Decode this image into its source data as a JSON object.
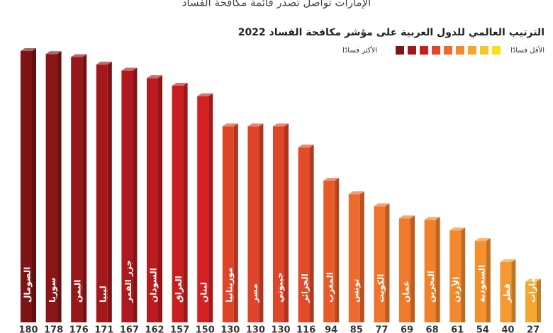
{
  "chart_data": {
    "type": "bar",
    "title": "الإمارات تواصل تصدر قائمة مكافحة الفساد",
    "subtitle": "الترتيب العالمي للدول العربية على مؤشر مكافحة الفساد 2022",
    "legend_low": "الأقل فسادًا",
    "legend_high": "الأكثر فسادًا",
    "legend_colors": [
      "#f6e21a",
      "#f7c81f",
      "#f5a52a",
      "#f18a2b",
      "#ec6a2b",
      "#e0452a",
      "#c81e20",
      "#a4181b",
      "#7d1416"
    ],
    "categories": [
      "الصومال",
      "سوريا",
      "اليمن",
      "ليبيا",
      "جزر القمر",
      "السودان",
      "العراق",
      "لبنان",
      "موريتانيا",
      "مصر",
      "جيبوتي",
      "الجزائر",
      "المغرب",
      "تونس",
      "الكويت",
      "عمان",
      "البحرين",
      "الأردن",
      "السعودية",
      "قطر",
      "الإمارات"
    ],
    "values": [
      180,
      178,
      176,
      171,
      167,
      162,
      157,
      150,
      130,
      130,
      130,
      116,
      94,
      85,
      77,
      69,
      68,
      61,
      54,
      40,
      27
    ],
    "colors": [
      "#7d1416",
      "#8a1517",
      "#981719",
      "#a4181b",
      "#ad191c",
      "#bb1b1e",
      "#c81e20",
      "#d42022",
      "#e0452a",
      "#e0452a",
      "#e0452a",
      "#e24a2a",
      "#e85c2a",
      "#ec6a2b",
      "#ef732b",
      "#f07a2b",
      "#f2812b",
      "#f4882c",
      "#f5902d",
      "#f49a30",
      "#f5a532"
    ],
    "ylim": [
      0,
      180
    ]
  }
}
